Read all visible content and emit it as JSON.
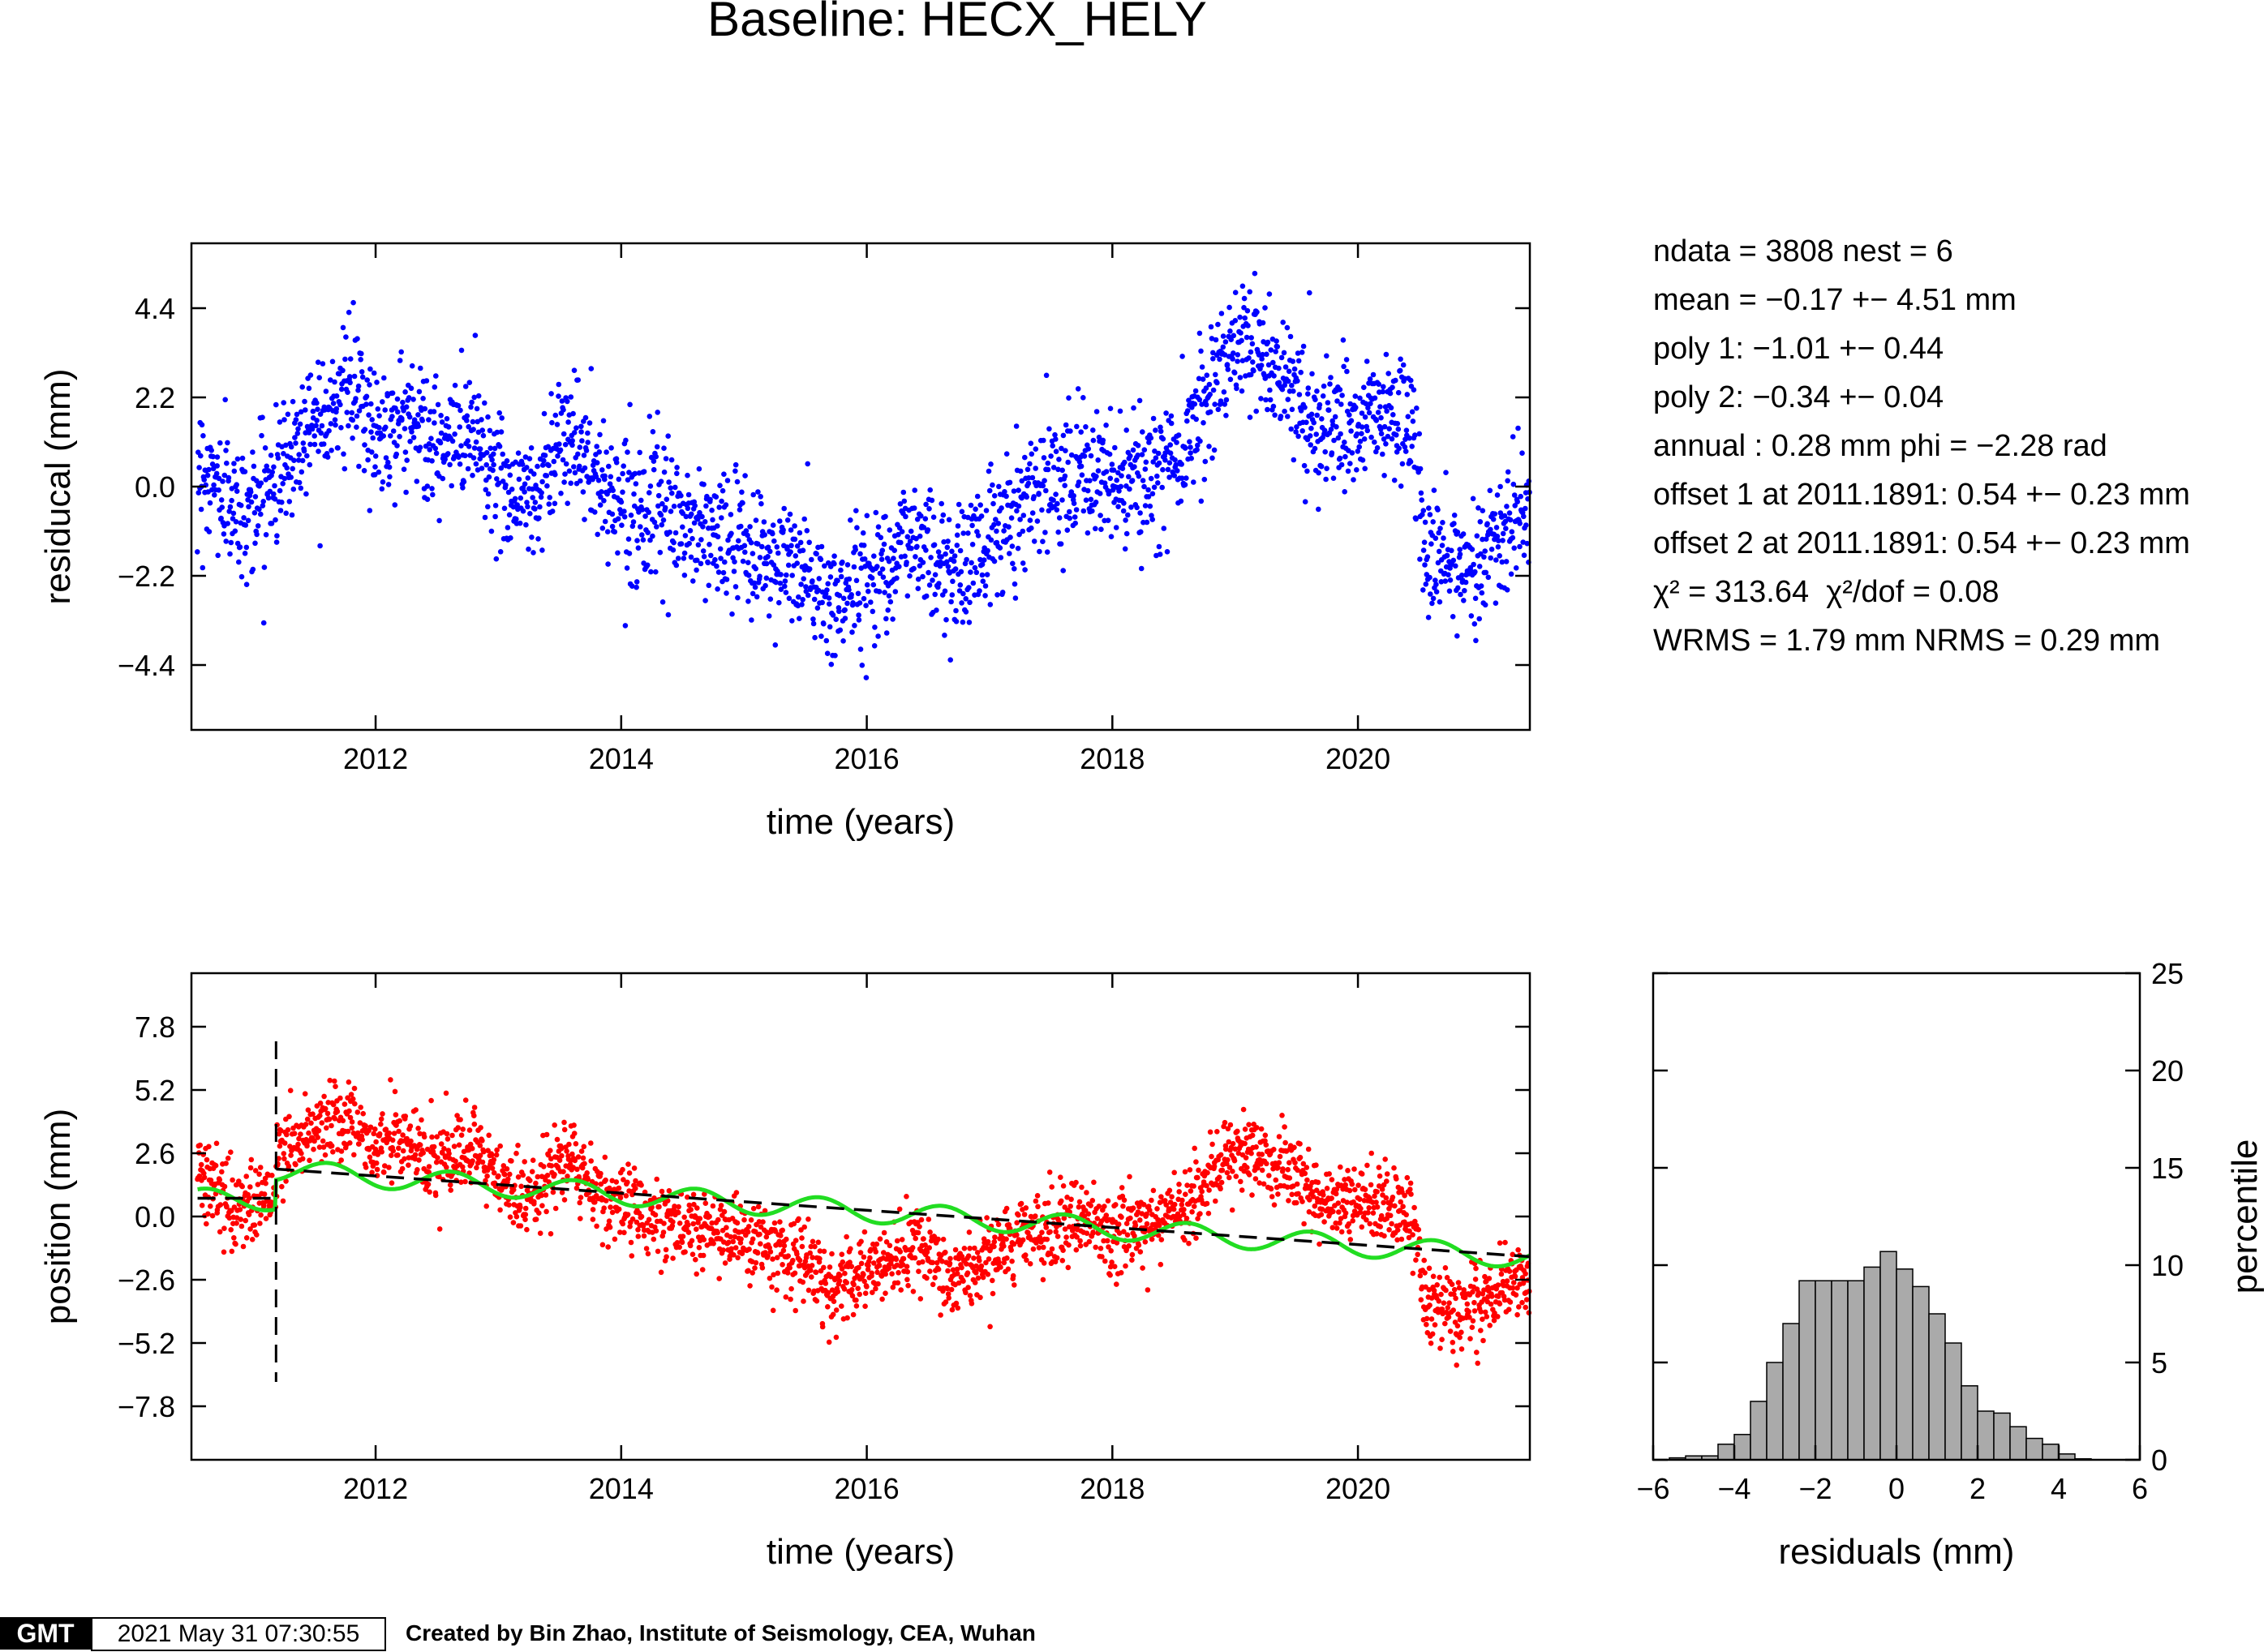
{
  "title": "Baseline: HECX_HELY",
  "stats": {
    "line1": "ndata = 3808  nest = 6",
    "line2": "mean = −0.17 +− 4.51 mm",
    "line3": "poly 1: −1.01 +− 0.44",
    "line4": "poly 2: −0.34 +− 0.04",
    "line5": "annual : 0.28 mm  phi = −2.28 rad",
    "line6": "offset 1 at 2011.1891: 0.54 +− 0.23 mm",
    "line7": "offset 2 at 2011.1891: 0.54 +− 0.23 mm",
    "line8a": "χ² = 313.64",
    "line8b": "χ²/dof = 0.08",
    "line9": "WRMS = 1.79 mm  NRMS = 0.29 mm"
  },
  "footer": {
    "logo": "GMT",
    "timestamp": "2021 May 31 07:30:55",
    "credit": "Created by Bin Zhao, Institute of Seismology, CEA, Wuhan"
  },
  "colors": {
    "residual_points": "#0000ff",
    "position_points": "#ff0000",
    "model_fit": "#22dd22",
    "trend_line": "#000000",
    "histogram_bars": "#aaaaaa"
  },
  "chart_data": [
    {
      "type": "scatter",
      "ylabel": "residucal (mm)",
      "xlabel": "time (years)",
      "xlim": [
        2010.5,
        2021.4
      ],
      "ylim": [
        -6.0,
        6.0
      ],
      "xticks": [
        "2012",
        "2014",
        "2016",
        "2018",
        "2020"
      ],
      "xtick_values": [
        2012,
        2014,
        2016,
        2018,
        2020
      ],
      "yticks": [
        "−4.4",
        "−2.2",
        "0.0",
        "2.2",
        "4.4"
      ],
      "ytick_values": [
        -4.4,
        -2.2,
        0.0,
        2.2,
        4.4
      ],
      "series": [
        {
          "marker": "dot",
          "color": "#0000ff",
          "trend": [
            [
              2010.55,
              0.6
            ],
            [
              2010.9,
              -0.7
            ],
            [
              2011.2,
              0.2
            ],
            [
              2011.5,
              1.8
            ],
            [
              2011.8,
              2.4
            ],
            [
              2012.0,
              1.3
            ],
            [
              2012.3,
              1.8
            ],
            [
              2012.5,
              0.8
            ],
            [
              2012.8,
              1.6
            ],
            [
              2013.0,
              0.1
            ],
            [
              2013.3,
              -0.3
            ],
            [
              2013.55,
              1.6
            ],
            [
              2013.8,
              0.1
            ],
            [
              2014.0,
              -0.3
            ],
            [
              2014.5,
              -0.9
            ],
            [
              2015.0,
              -1.5
            ],
            [
              2015.5,
              -2.1
            ],
            [
              2015.7,
              -3.0
            ],
            [
              2016.0,
              -2.2
            ],
            [
              2016.4,
              -1.2
            ],
            [
              2016.7,
              -2.2
            ],
            [
              2017.0,
              -1.3
            ],
            [
              2017.3,
              -0.2
            ],
            [
              2017.6,
              0.5
            ],
            [
              2018.0,
              0.0
            ],
            [
              2018.4,
              0.2
            ],
            [
              2018.7,
              1.8
            ],
            [
              2019.0,
              3.7
            ],
            [
              2019.4,
              2.8
            ],
            [
              2019.7,
              1.3
            ],
            [
              2020.0,
              1.5
            ],
            [
              2020.3,
              1.8
            ],
            [
              2020.45,
              1.4
            ],
            [
              2020.55,
              -1.8
            ],
            [
              2020.8,
              -2.0
            ],
            [
              2021.1,
              -1.4
            ],
            [
              2021.4,
              -0.6
            ]
          ],
          "spread": 0.8,
          "n_points": 3808
        }
      ]
    },
    {
      "type": "scatter",
      "ylabel": "position (mm)",
      "xlabel": "time (years)",
      "xlim": [
        2010.5,
        2021.4
      ],
      "ylim": [
        -10.0,
        10.0
      ],
      "xticks": [
        "2012",
        "2014",
        "2016",
        "2018",
        "2020"
      ],
      "xtick_values": [
        2012,
        2014,
        2016,
        2018,
        2020
      ],
      "yticks": [
        "−7.8",
        "−5.2",
        "−2.6",
        "0.0",
        "2.6",
        "5.2",
        "7.8"
      ],
      "ytick_values": [
        -7.8,
        -5.2,
        -2.6,
        0.0,
        2.6,
        5.2,
        7.8
      ],
      "offset_epoch": 2011.1891,
      "offset_line_range": [
        -6.8,
        7.2
      ],
      "series": [
        {
          "marker": "dot",
          "color": "#ff0000",
          "trend": [
            [
              2010.55,
              1.9
            ],
            [
              2010.9,
              0.2
            ],
            [
              2011.18,
              0.8
            ],
            [
              2011.2,
              2.6
            ],
            [
              2011.5,
              3.6
            ],
            [
              2011.8,
              4.0
            ],
            [
              2012.0,
              2.9
            ],
            [
              2012.3,
              3.2
            ],
            [
              2012.5,
              2.0
            ],
            [
              2012.8,
              2.7
            ],
            [
              2013.0,
              1.3
            ],
            [
              2013.3,
              0.8
            ],
            [
              2013.55,
              2.6
            ],
            [
              2013.8,
              1.0
            ],
            [
              2014.0,
              0.5
            ],
            [
              2014.5,
              -0.4
            ],
            [
              2015.0,
              -0.9
            ],
            [
              2015.5,
              -1.9
            ],
            [
              2015.7,
              -3.2
            ],
            [
              2016.0,
              -2.2
            ],
            [
              2016.4,
              -1.4
            ],
            [
              2016.7,
              -2.6
            ],
            [
              2017.0,
              -1.8
            ],
            [
              2017.3,
              -0.8
            ],
            [
              2017.6,
              -0.2
            ],
            [
              2018.0,
              -0.6
            ],
            [
              2018.4,
              -0.3
            ],
            [
              2018.7,
              1.1
            ],
            [
              2019.0,
              3.0
            ],
            [
              2019.4,
              2.0
            ],
            [
              2019.7,
              0.4
            ],
            [
              2020.0,
              0.4
            ],
            [
              2020.3,
              0.5
            ],
            [
              2020.45,
              0.0
            ],
            [
              2020.55,
              -3.6
            ],
            [
              2020.8,
              -4.0
            ],
            [
              2021.1,
              -3.2
            ],
            [
              2021.4,
              -2.6
            ]
          ],
          "spread": 0.8,
          "n_points": 3808
        },
        {
          "name": "",
          "style": "dashed",
          "color": "#000000",
          "points": [
            [
              2010.55,
              0.75
            ],
            [
              2011.18,
              0.75
            ],
            [
              2011.19,
              1.95
            ],
            [
              2021.4,
              -1.65
            ]
          ]
        },
        {
          "style": "solid",
          "color": "#22dd22",
          "base": [
            [
              2010.55,
              0.7
            ],
            [
              2011.18,
              0.7
            ],
            [
              2011.19,
              1.9
            ],
            [
              2021.4,
              -1.7
            ]
          ],
          "annual_amplitude": 0.28
        }
      ]
    },
    {
      "type": "bar",
      "xlabel": "residuals (mm)",
      "ylabel": "percentile",
      "xlim": [
        -6,
        6
      ],
      "ylim": [
        0,
        25
      ],
      "xticks": [
        "−6",
        "−4",
        "−2",
        "0",
        "2",
        "4",
        "6"
      ],
      "xtick_values": [
        -6,
        -4,
        -2,
        0,
        2,
        4,
        6
      ],
      "yticks": [
        "0",
        "5",
        "10",
        "15",
        "20",
        "25"
      ],
      "ytick_values": [
        0,
        5,
        10,
        15,
        20,
        25
      ],
      "bin_width": 0.4,
      "bin_starts": [
        -5.6,
        -5.2,
        -4.8,
        -4.4,
        -4.0,
        -3.6,
        -3.2,
        -2.8,
        -2.4,
        -2.0,
        -1.6,
        -1.2,
        -0.8,
        -0.4,
        0.0,
        0.4,
        0.8,
        1.2,
        1.6,
        2.0,
        2.4,
        2.8,
        3.2,
        3.6,
        4.0,
        4.4,
        4.8
      ],
      "values": [
        0.1,
        0.2,
        0.2,
        0.8,
        1.3,
        3.0,
        5.0,
        7.0,
        9.2,
        9.2,
        9.2,
        9.2,
        9.9,
        10.7,
        9.8,
        8.9,
        7.5,
        6.0,
        3.8,
        2.5,
        2.4,
        1.7,
        1.1,
        0.8,
        0.3,
        0.05,
        0.0
      ]
    }
  ]
}
